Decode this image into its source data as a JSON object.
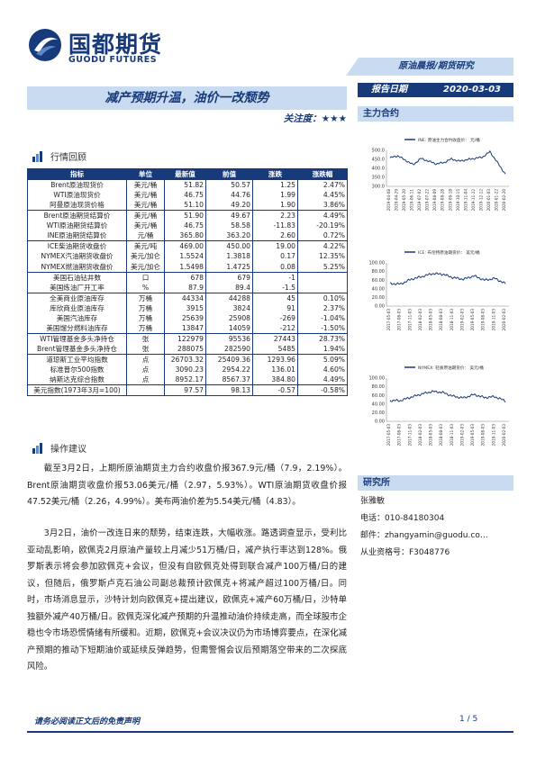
{
  "logo": {
    "cn": "国都期货",
    "en": "GUODU FUTURES"
  },
  "banner": "原油晨报/期货研究",
  "report_date_label": "报告日期",
  "report_date": "2020-03-03",
  "title": "减产预期升温，油价一改颓势",
  "attention_label": "关注度：",
  "attention_stars": "★★★",
  "section_main": "主力合约",
  "section_review": "行情回顾",
  "section_advice": "操作建议",
  "table": {
    "headers": [
      "指标",
      "单位",
      "最新值",
      "前值",
      "涨跌",
      "涨跌幅"
    ],
    "groups": [
      [
        [
          "Brent原油现货价",
          "美元/桶",
          "51.82",
          "50.57",
          "1.25",
          "2.47%"
        ],
        [
          "WTI原油现货价",
          "美元/桶",
          "46.75",
          "44.76",
          "1.99",
          "4.45%"
        ],
        [
          "阿曼原油现货价格",
          "美元/桶",
          "51.10",
          "49.20",
          "1.90",
          "3.86%"
        ]
      ],
      [
        [
          "Brent原油期货结算价",
          "美元/桶",
          "51.90",
          "49.67",
          "2.23",
          "4.49%"
        ],
        [
          "WTI原油期货结算价",
          "美元/桶",
          "46.75",
          "58.58",
          "-11.83",
          "-20.19%"
        ],
        [
          "INE原油期货结算价",
          "元/桶",
          "365.80",
          "363.20",
          "2.60",
          "0.72%"
        ]
      ],
      [
        [
          "ICE柴油期货收盘价",
          "美元/吨",
          "469.00",
          "450.00",
          "19.00",
          "4.22%"
        ],
        [
          "NYMEX汽油期货收盘价",
          "美元/加仑",
          "1.5524",
          "1.3818",
          "0.17",
          "12.35%"
        ],
        [
          "NYMEX燃油期货收盘价",
          "美元/加仑",
          "1.5498",
          "1.4725",
          "0.08",
          "5.25%"
        ]
      ],
      [
        [
          "美国石油钻井数",
          "口",
          "678",
          "679",
          "-1",
          ""
        ],
        [
          "美国炼油厂开工率",
          "%",
          "87.9",
          "89.4",
          "-1.5",
          ""
        ]
      ],
      [
        [
          "全美商业原油库存",
          "万桶",
          "44334",
          "44288",
          "45",
          "0.10%"
        ],
        [
          "库欣商业原油库存",
          "万桶",
          "3915",
          "3824",
          "91",
          "2.37%"
        ],
        [
          "美国汽油库存",
          "万桶",
          "25639",
          "25908",
          "-269",
          "-1.04%"
        ],
        [
          "美国馏分燃料油库存",
          "万桶",
          "13847",
          "14059",
          "-212",
          "-1.50%"
        ]
      ],
      [
        [
          "WTI管理基金多头净持仓",
          "张",
          "122979",
          "95536",
          "27443",
          "28.73%"
        ],
        [
          "Brent管理基金多头净持仓",
          "张",
          "288075",
          "282590",
          "5485",
          "1.94%"
        ]
      ],
      [
        [
          "道琼斯工业平均指数",
          "点",
          "26703.32",
          "25409.36",
          "1293.96",
          "5.09%"
        ],
        [
          "标准普尔500指数",
          "点",
          "3090.23",
          "2954.22",
          "136.01",
          "4.60%"
        ],
        [
          "纳斯达克综合指数",
          "点",
          "8952.17",
          "8567.37",
          "384.80",
          "4.49%"
        ]
      ],
      [
        [
          "美元指数(1973年3月=100)",
          "",
          "97.57",
          "98.13",
          "-0.57",
          "-0.58%"
        ]
      ]
    ]
  },
  "chart_data": [
    {
      "type": "line",
      "legend": "INE: 原油主力合约收盘价： 元/桶",
      "ylim": [
        300,
        500
      ],
      "yticks": [
        "500.0",
        "450.0",
        "400.0",
        "350.0",
        "300.0"
      ],
      "x": [
        "2019-04-08",
        "2019-04-29",
        "2019-05-20",
        "2019-06-11",
        "2019-07-02",
        "2019-07-22",
        "2019-08-09",
        "2019-08-28",
        "2019-09-18",
        "2019-10-15",
        "2019-11-04",
        "2019-11-22",
        "2019-12-12",
        "2020-01-03",
        "2020-01-22",
        "2020-02-20"
      ],
      "values": [
        458,
        470,
        445,
        420,
        455,
        440,
        425,
        432,
        452,
        440,
        448,
        455,
        462,
        492,
        430,
        368
      ],
      "grid": false,
      "legend_position": "top"
    },
    {
      "type": "line",
      "legend": "ICE: 布伦特原油期货价： 美元/桶",
      "ylim": [
        0,
        100
      ],
      "yticks": [
        "100.00",
        "80.00",
        "60.00",
        "40.00",
        "20.00",
        "0.00"
      ],
      "x": [
        "2017-05-03",
        "2017-08-03",
        "2017-11-03",
        "2018-02-03",
        "2018-05-03",
        "2018-08-03",
        "2018-11-03",
        "2019-02-03",
        "2019-05-03",
        "2019-08-03",
        "2019-11-03",
        "2020-02-03"
      ],
      "values": [
        52,
        51,
        62,
        68,
        75,
        74,
        66,
        62,
        70,
        60,
        64,
        52
      ],
      "grid": false,
      "legend_position": "top"
    },
    {
      "type": "line",
      "legend": "NYMEX: 轻质原油期货价： 美元/桶",
      "ylim": [
        0,
        100
      ],
      "yticks": [
        "100.00",
        "80.00",
        "60.00",
        "40.00",
        "20.00",
        "0.00"
      ],
      "x": [
        "2017-05-03",
        "2017-08-03",
        "2017-11-03",
        "2018-02-03",
        "2018-05-03",
        "2018-08-03",
        "2018-11-03",
        "2019-02-03",
        "2019-05-03",
        "2019-08-03",
        "2019-11-03",
        "2020-02-03"
      ],
      "values": [
        48,
        48,
        56,
        63,
        69,
        67,
        58,
        54,
        62,
        55,
        57,
        47
      ],
      "grid": false,
      "legend_position": "top"
    }
  ],
  "paragraphs": [
    "截至3月2日，上期所原油期货主力合约收盘价报367.9元/桶（7.9，2.19%）。Brent原油期货收盘价报53.06美元/桶（2.97，5.93%）。WTI原油期货收盘价报47.52美元/桶（2.26，4.99%）。美布两油价差为5.54美元/桶（4.83）。",
    "3月2日，油价一改连日来的颓势，结束连跌，大幅收涨。路透调查显示，受利比亚动乱影响，欧佩克2月原油产量较上月减少51万桶/日，减产执行率达到128%。俄罗斯表示将会参加欧佩克+会议，但没有自欧佩克处得到联合减产100万桶/日的建议，但随后，俄罗斯卢克石油公司副总裁预计欧佩克+将减产超过100万桶/日。同时，市场消息显示，沙特计划向欧佩克+提出建议，欧佩克+减产60万桶/日，沙特单独额外减产40万桶/日。欧佩克深化减产预期的升温推动油价持续走高，而全球股市企稳也令市场恐慌情绪有所缓和。近期，欧佩克+会议决议仍为市场博弈要点，在深化减产预期的推动下短期油价或延续反弹趋势，但需警惕会议后预期落空带来的二次探底风险。"
  ],
  "research": {
    "head": "研究所",
    "name": "张雅敏",
    "phone": "电话：010-84180304",
    "email": "邮件：zhangyamin@guodu.co…",
    "license": "从业资格号：F3048776"
  },
  "footer": {
    "left": "请务必阅读正文后的免责声明",
    "right": "1 / 5"
  },
  "colors": {
    "brand": "#173a7a",
    "light": "#c9dbf0"
  }
}
